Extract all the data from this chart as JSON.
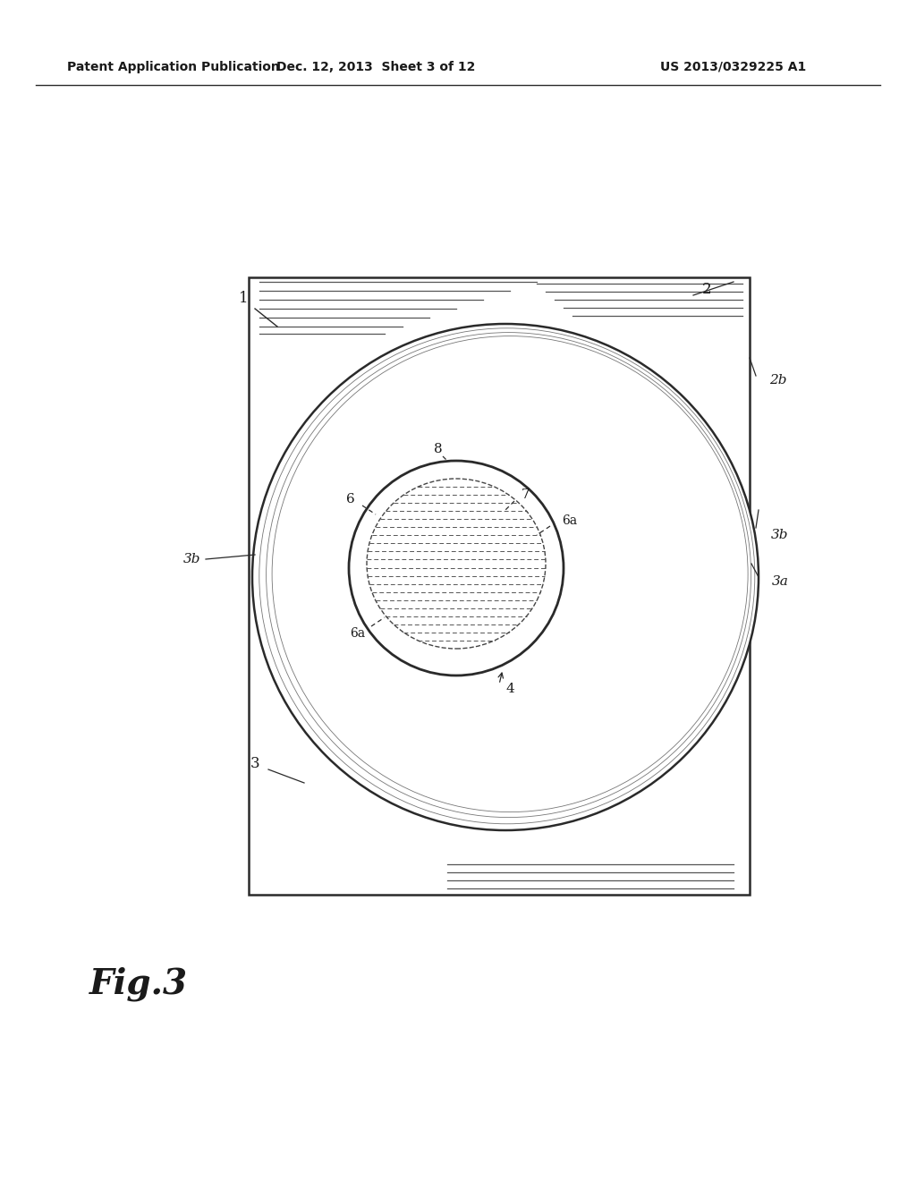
{
  "bg_color": "#ffffff",
  "header_text": "Patent Application Publication",
  "header_date": "Dec. 12, 2013  Sheet 3 of 12",
  "header_patent": "US 2013/0329225 A1",
  "fig_label": "Fig.3",
  "line_color": "#2a2a2a",
  "text_color": "#1a1a1a"
}
